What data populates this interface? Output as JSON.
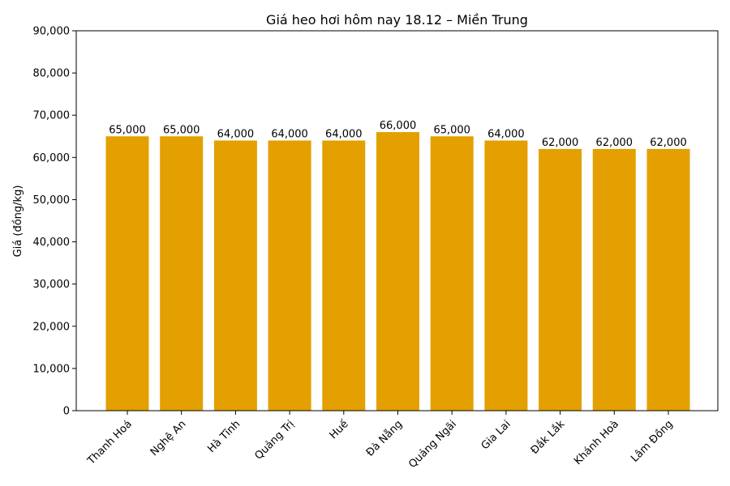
{
  "chart_data": {
    "type": "bar",
    "title": "Giá heo hơi hôm nay 18.12 – Miền Trung",
    "xlabel": "",
    "ylabel": "Giá (đồng/kg)",
    "categories": [
      "Thanh Hoá",
      "Nghệ An",
      "Hà Tĩnh",
      "Quảng Trị",
      "Huế",
      "Đà Nẵng",
      "Quảng Ngãi",
      "Gia Lai",
      "Đắk Lắk",
      "Khánh Hoà",
      "Lâm Đồng"
    ],
    "values": [
      65000,
      65000,
      64000,
      64000,
      64000,
      66000,
      65000,
      64000,
      62000,
      62000,
      62000
    ],
    "value_labels": [
      "65,000",
      "65,000",
      "64,000",
      "64,000",
      "64,000",
      "66,000",
      "65,000",
      "64,000",
      "62,000",
      "62,000",
      "62,000"
    ],
    "ylim": [
      0,
      90000
    ],
    "yticks": [
      0,
      10000,
      20000,
      30000,
      40000,
      50000,
      60000,
      70000,
      80000,
      90000
    ],
    "ytick_labels": [
      "0",
      "10,000",
      "20,000",
      "30,000",
      "40,000",
      "50,000",
      "60,000",
      "70,000",
      "80,000",
      "90,000"
    ],
    "grid": false,
    "bar_color": "#E3A000"
  }
}
